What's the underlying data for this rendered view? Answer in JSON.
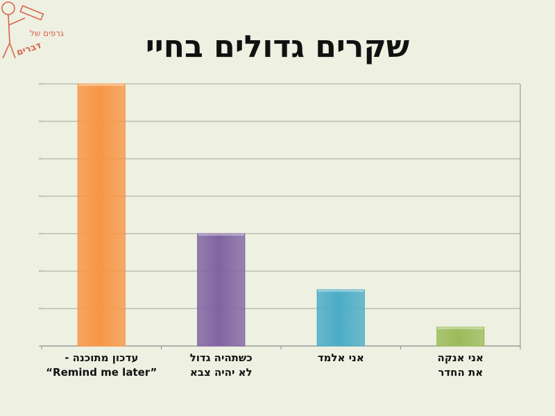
{
  "logo": {
    "text_line1": "גרפים של",
    "text_line2": "דברים",
    "color": "#d9644a",
    "icon": "stick-figure-with-pencil-icon"
  },
  "title": "שקרים גדולים בחיי",
  "chart_data": {
    "type": "bar",
    "title": "שקרים גדולים בחיי",
    "xlabel": "",
    "ylabel": "",
    "ylim": [
      0,
      7
    ],
    "grid": true,
    "y_tick_labels_shown": false,
    "categories": [
      [
        "עדכון מתוכנה -",
        "“Remind me later”"
      ],
      [
        "כשתהיה גדול",
        "לא יהיה צבא"
      ],
      [
        "אני אלמד"
      ],
      [
        "אני אנקה",
        "את החדר"
      ]
    ],
    "values": [
      7,
      3,
      1.5,
      0.5
    ],
    "colors": [
      "#f79646",
      "#8064a2",
      "#4bacc6",
      "#9bbb59"
    ]
  },
  "colors": {
    "background": "#eef0e2",
    "grid": "#8a8a8a"
  }
}
